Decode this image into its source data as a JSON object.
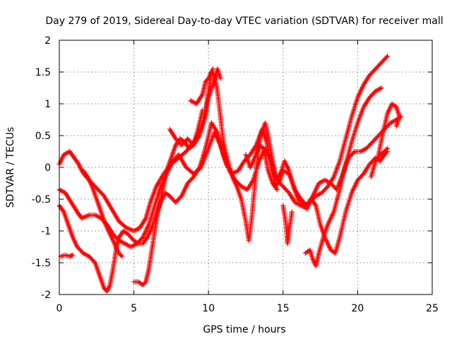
{
  "chart_data": {
    "type": "scatter",
    "title": "Day 279 of 2019, Sidereal Day-to-day VTEC variation (SDTVAR) for receiver mall",
    "xlabel": "GPS time / hours",
    "ylabel": "SDTVAR / TECUs",
    "xlim": [
      0,
      25
    ],
    "ylim": [
      -2,
      2
    ],
    "xticks": [
      0,
      5,
      10,
      15,
      20,
      25
    ],
    "yticks": [
      -2,
      -1.5,
      -1,
      -0.5,
      0,
      0.5,
      1,
      1.5,
      2
    ],
    "xtick_labels": [
      "0",
      "5",
      "10",
      "15",
      "20",
      "25"
    ],
    "ytick_labels": [
      "-2",
      "-1.5",
      "-1",
      "-0.5",
      "0",
      "0.5",
      "1",
      "1.5",
      "2"
    ],
    "grid": true,
    "marker": "plus",
    "color": "#ff0000",
    "series": [
      {
        "values": [
          [
            0.0,
            0.05
          ],
          [
            0.3,
            0.2
          ],
          [
            0.7,
            0.25
          ],
          [
            1.0,
            0.15
          ],
          [
            1.3,
            0.05
          ],
          [
            1.5,
            -0.05
          ],
          [
            1.8,
            -0.15
          ],
          [
            2.2,
            -0.25
          ],
          [
            2.6,
            -0.35
          ],
          [
            3.0,
            -0.45
          ],
          [
            3.5,
            -0.65
          ],
          [
            4.0,
            -0.85
          ],
          [
            4.5,
            -0.95
          ],
          [
            5.0,
            -1.0
          ],
          [
            5.4,
            -0.95
          ],
          [
            5.8,
            -0.8
          ],
          [
            6.1,
            -0.55
          ],
          [
            6.5,
            -0.3
          ],
          [
            7.0,
            -0.1
          ],
          [
            7.5,
            0.05
          ],
          [
            8.0,
            0.15
          ],
          [
            8.5,
            0.25
          ],
          [
            9.0,
            0.4
          ],
          [
            9.5,
            0.6
          ],
          [
            9.8,
            0.9
          ],
          [
            10.0,
            1.2
          ],
          [
            10.2,
            1.5
          ],
          [
            10.4,
            1.45
          ],
          [
            10.6,
            1.2
          ],
          [
            10.8,
            0.8
          ],
          [
            11.0,
            0.4
          ],
          [
            11.3,
            0.1
          ],
          [
            11.6,
            -0.15
          ],
          [
            11.9,
            -0.3
          ],
          [
            12.2,
            -0.5
          ],
          [
            12.5,
            -0.85
          ],
          [
            12.7,
            -1.15
          ],
          [
            12.9,
            -0.8
          ],
          [
            13.1,
            -0.3
          ],
          [
            13.3,
            0.2
          ],
          [
            13.5,
            0.5
          ],
          [
            13.8,
            0.7
          ],
          [
            14.0,
            0.5
          ],
          [
            14.3,
            0.1
          ],
          [
            14.6,
            -0.2
          ],
          [
            14.9,
            -0.05
          ],
          [
            15.1,
            0.1
          ],
          [
            15.4,
            -0.05
          ],
          [
            15.7,
            -0.3
          ],
          [
            16.0,
            -0.5
          ],
          [
            16.4,
            -0.6
          ],
          [
            16.8,
            -0.55
          ],
          [
            17.2,
            -0.45
          ],
          [
            17.6,
            -0.4
          ],
          [
            18.0,
            -0.3
          ],
          [
            18.4,
            -0.15
          ],
          [
            18.8,
            0.1
          ],
          [
            19.2,
            0.45
          ],
          [
            19.6,
            0.8
          ],
          [
            20.0,
            1.1
          ],
          [
            20.4,
            1.3
          ],
          [
            20.8,
            1.45
          ],
          [
            21.2,
            1.55
          ],
          [
            21.6,
            1.65
          ],
          [
            22.0,
            1.75
          ]
        ]
      },
      {
        "values": [
          [
            0.0,
            -0.35
          ],
          [
            0.4,
            -0.4
          ],
          [
            0.8,
            -0.55
          ],
          [
            1.2,
            -0.7
          ],
          [
            1.5,
            -0.8
          ],
          [
            2.0,
            -0.75
          ],
          [
            2.4,
            -0.75
          ],
          [
            2.8,
            -0.8
          ],
          [
            3.2,
            -0.9
          ],
          [
            3.6,
            -1.05
          ],
          [
            4.0,
            -1.15
          ],
          [
            4.4,
            -1.2
          ],
          [
            4.8,
            -1.25
          ],
          [
            5.2,
            -1.2
          ],
          [
            5.6,
            -1.1
          ],
          [
            6.0,
            -0.9
          ],
          [
            6.4,
            -0.6
          ],
          [
            6.8,
            -0.3
          ],
          [
            7.2,
            -0.1
          ],
          [
            7.6,
            0.1
          ],
          [
            8.0,
            0.2
          ],
          [
            8.5,
            0.0
          ],
          [
            9.0,
            -0.1
          ],
          [
            9.5,
            0.0
          ],
          [
            10.0,
            0.3
          ],
          [
            10.4,
            0.55
          ],
          [
            10.8,
            0.35
          ],
          [
            11.2,
            0.05
          ],
          [
            11.6,
            -0.1
          ],
          [
            12.0,
            -0.05
          ],
          [
            12.4,
            0.1
          ],
          [
            12.8,
            0.2
          ],
          [
            13.2,
            0.35
          ],
          [
            13.6,
            0.6
          ],
          [
            13.9,
            0.4
          ],
          [
            14.2,
            0.0
          ],
          [
            14.5,
            -0.3
          ],
          [
            14.8,
            -0.2
          ],
          [
            15.0,
            -0.05
          ],
          [
            15.4,
            -0.1
          ],
          [
            15.8,
            -0.35
          ],
          [
            16.2,
            -0.5
          ],
          [
            16.6,
            -0.6
          ],
          [
            17.0,
            -0.45
          ],
          [
            17.4,
            -0.25
          ],
          [
            17.8,
            -0.2
          ],
          [
            18.2,
            -0.25
          ],
          [
            18.6,
            -0.35
          ],
          [
            19.0,
            -0.1
          ],
          [
            19.4,
            0.15
          ],
          [
            19.8,
            0.25
          ],
          [
            20.2,
            0.25
          ],
          [
            20.6,
            0.3
          ],
          [
            21.0,
            0.4
          ],
          [
            21.4,
            0.5
          ],
          [
            21.8,
            0.6
          ],
          [
            22.2,
            0.7
          ],
          [
            22.6,
            0.75
          ],
          [
            22.9,
            0.8
          ]
        ]
      },
      {
        "values": [
          [
            0.0,
            -0.6
          ],
          [
            0.3,
            -0.7
          ],
          [
            0.6,
            -0.9
          ],
          [
            0.9,
            -1.1
          ],
          [
            1.2,
            -1.25
          ],
          [
            1.6,
            -1.35
          ],
          [
            2.0,
            -1.4
          ],
          [
            2.4,
            -1.5
          ],
          [
            2.7,
            -1.7
          ],
          [
            3.0,
            -1.9
          ],
          [
            3.2,
            -1.95
          ],
          [
            3.4,
            -1.85
          ],
          [
            3.6,
            -1.6
          ],
          [
            3.8,
            -1.3
          ],
          [
            4.0,
            -1.1
          ],
          [
            4.3,
            -1.0
          ],
          [
            4.6,
            -1.05
          ],
          [
            5.0,
            -1.15
          ],
          [
            5.3,
            -1.2
          ],
          [
            5.6,
            -1.2
          ],
          [
            5.9,
            -1.1
          ],
          [
            6.2,
            -0.95
          ],
          [
            6.5,
            -0.75
          ],
          [
            6.8,
            -0.55
          ],
          [
            7.1,
            -0.4
          ],
          [
            7.4,
            -0.45
          ],
          [
            7.8,
            -0.55
          ],
          [
            8.2,
            -0.45
          ],
          [
            8.6,
            -0.25
          ],
          [
            9.0,
            -0.15
          ],
          [
            9.4,
            0.0
          ],
          [
            9.8,
            0.3
          ],
          [
            10.2,
            0.7
          ],
          [
            10.6,
            0.55
          ],
          [
            11.0,
            0.2
          ],
          [
            11.4,
            -0.05
          ],
          [
            11.8,
            -0.2
          ],
          [
            12.2,
            -0.3
          ],
          [
            12.6,
            -0.35
          ],
          [
            13.0,
            -0.2
          ],
          [
            13.4,
            0.1
          ],
          [
            13.8,
            0.3
          ],
          [
            14.2,
            0.1
          ],
          [
            14.6,
            -0.2
          ],
          [
            15.0,
            -0.3
          ],
          [
            15.4,
            -0.4
          ],
          [
            15.8,
            -0.55
          ],
          [
            16.2,
            -0.6
          ],
          [
            16.6,
            -0.65
          ],
          [
            16.9,
            -0.5
          ],
          [
            17.2,
            -0.6
          ],
          [
            17.5,
            -0.9
          ],
          [
            17.8,
            -1.1
          ],
          [
            18.2,
            -1.3
          ],
          [
            18.5,
            -1.35
          ],
          [
            18.8,
            -1.1
          ],
          [
            19.2,
            -0.7
          ],
          [
            19.6,
            -0.4
          ],
          [
            20.0,
            -0.2
          ],
          [
            20.4,
            -0.1
          ],
          [
            20.8,
            0.05
          ],
          [
            21.2,
            0.15
          ],
          [
            21.5,
            0.1
          ],
          [
            21.8,
            0.2
          ],
          [
            22.0,
            0.25
          ]
        ]
      },
      {
        "values": [
          [
            0.1,
            -1.4
          ],
          [
            0.4,
            -1.38
          ],
          [
            0.7,
            -1.4
          ],
          [
            0.9,
            -1.38
          ]
        ]
      },
      {
        "values": [
          [
            1.6,
            -0.05
          ],
          [
            1.9,
            -0.15
          ],
          [
            2.2,
            -0.3
          ],
          [
            2.5,
            -0.5
          ],
          [
            2.8,
            -0.7
          ],
          [
            3.1,
            -0.9
          ],
          [
            3.4,
            -1.05
          ],
          [
            3.7,
            -1.2
          ],
          [
            4.0,
            -1.35
          ],
          [
            4.2,
            -1.4
          ]
        ]
      },
      {
        "values": [
          [
            5.0,
            -1.8
          ],
          [
            5.3,
            -1.8
          ],
          [
            5.6,
            -1.85
          ],
          [
            5.8,
            -1.8
          ],
          [
            6.0,
            -1.6
          ],
          [
            6.2,
            -1.3
          ],
          [
            6.4,
            -1.0
          ],
          [
            6.6,
            -0.7
          ],
          [
            6.9,
            -0.4
          ],
          [
            7.2,
            -0.05
          ],
          [
            7.5,
            0.15
          ],
          [
            7.8,
            0.35
          ],
          [
            8.1,
            0.45
          ],
          [
            8.4,
            0.4
          ],
          [
            8.7,
            0.3
          ],
          [
            9.0,
            0.35
          ],
          [
            9.3,
            0.6
          ],
          [
            9.6,
            0.9
          ]
        ]
      },
      {
        "values": [
          [
            7.4,
            0.6
          ],
          [
            7.8,
            0.45
          ],
          [
            8.2,
            0.35
          ],
          [
            8.6,
            0.45
          ],
          [
            9.0,
            0.35
          ],
          [
            9.4,
            0.5
          ],
          [
            9.8,
            0.8
          ],
          [
            10.0,
            1.1
          ],
          [
            10.3,
            1.3
          ],
          [
            10.6,
            1.55
          ],
          [
            10.8,
            1.4
          ]
        ]
      },
      {
        "values": [
          [
            8.8,
            1.05
          ],
          [
            9.2,
            1.0
          ],
          [
            9.6,
            1.15
          ],
          [
            9.8,
            1.35
          ],
          [
            10.0,
            1.4
          ],
          [
            10.3,
            1.55
          ]
        ]
      },
      {
        "values": [
          [
            12.5,
            0.2
          ],
          [
            12.8,
            0.0
          ],
          [
            13.1,
            0.15
          ],
          [
            13.4,
            0.35
          ],
          [
            13.7,
            0.3
          ],
          [
            14.0,
            -0.05
          ],
          [
            14.3,
            -0.25
          ],
          [
            14.6,
            -0.35
          ]
        ]
      },
      {
        "values": [
          [
            15.0,
            -0.6
          ],
          [
            15.2,
            -0.9
          ],
          [
            15.3,
            -1.2
          ],
          [
            15.4,
            -1.0
          ],
          [
            15.6,
            -0.7
          ]
        ]
      },
      {
        "values": [
          [
            16.5,
            -1.35
          ],
          [
            16.8,
            -1.3
          ],
          [
            17.0,
            -1.45
          ],
          [
            17.2,
            -1.55
          ],
          [
            17.4,
            -1.35
          ],
          [
            17.7,
            -1.1
          ],
          [
            18.0,
            -0.9
          ],
          [
            18.4,
            -0.7
          ],
          [
            18.8,
            -0.35
          ],
          [
            19.2,
            0.05
          ],
          [
            19.6,
            0.4
          ],
          [
            20.0,
            0.7
          ],
          [
            20.4,
            0.95
          ],
          [
            20.8,
            1.1
          ],
          [
            21.2,
            1.2
          ],
          [
            21.6,
            1.25
          ]
        ]
      },
      {
        "values": [
          [
            21.4,
            0.2
          ],
          [
            21.7,
            0.55
          ],
          [
            22.0,
            0.85
          ],
          [
            22.3,
            1.0
          ],
          [
            22.6,
            0.95
          ],
          [
            22.8,
            0.8
          ],
          [
            22.6,
            0.65
          ]
        ]
      },
      {
        "values": [
          [
            20.9,
            -0.15
          ],
          [
            21.2,
            0.1
          ],
          [
            21.5,
            0.2
          ],
          [
            21.8,
            0.25
          ],
          [
            22.0,
            0.3
          ]
        ]
      }
    ]
  }
}
